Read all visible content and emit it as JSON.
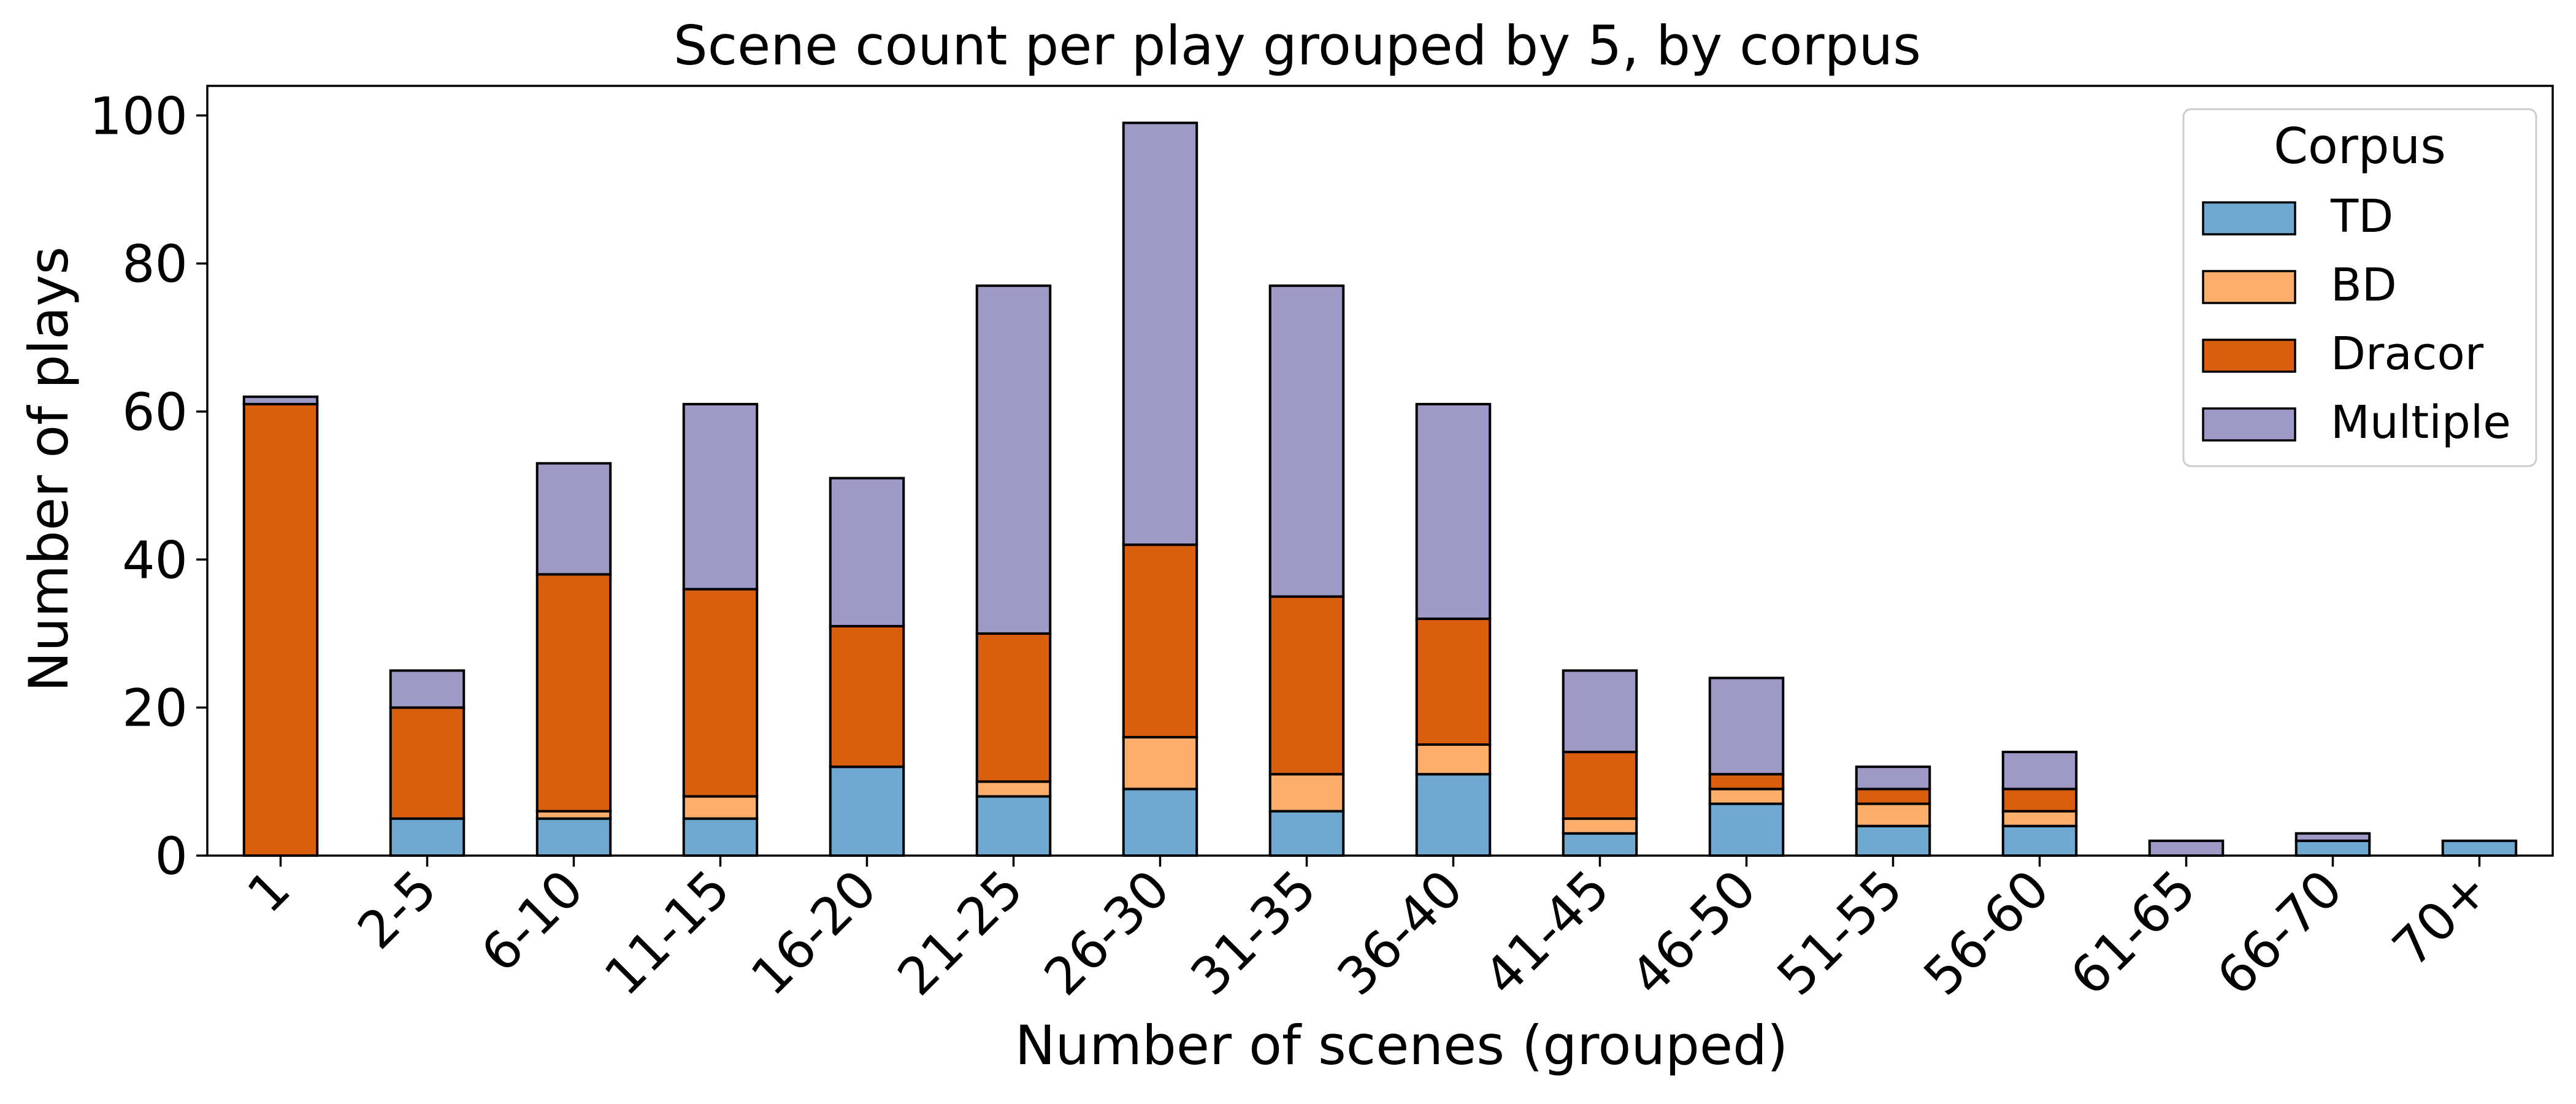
{
  "chart_data": {
    "type": "bar",
    "stacked": true,
    "title": "Scene count per play grouped by 5, by corpus",
    "xlabel": "Number of scenes (grouped)",
    "ylabel": "Number of plays",
    "ylim": [
      0,
      104
    ],
    "yticks": [
      0,
      20,
      40,
      60,
      80,
      100
    ],
    "grid": false,
    "categories": [
      "1",
      "2-5",
      "6-10",
      "11-15",
      "16-20",
      "21-25",
      "26-30",
      "31-35",
      "36-40",
      "41-45",
      "46-50",
      "51-55",
      "56-60",
      "61-65",
      "66-70",
      "70+"
    ],
    "series": [
      {
        "name": "TD",
        "color": "#6fa8d0",
        "values": [
          0,
          5,
          5,
          5,
          12,
          8,
          9,
          6,
          11,
          3,
          7,
          4,
          4,
          0,
          2,
          2
        ]
      },
      {
        "name": "BD",
        "color": "#fdae6b",
        "values": [
          0,
          0,
          1,
          3,
          0,
          2,
          7,
          5,
          4,
          2,
          2,
          3,
          2,
          0,
          0,
          0
        ]
      },
      {
        "name": "Dracor",
        "color": "#d95f0e",
        "values": [
          61,
          15,
          32,
          28,
          19,
          20,
          26,
          24,
          17,
          9,
          2,
          2,
          3,
          0,
          0,
          0
        ]
      },
      {
        "name": "Multiple",
        "color": "#9e9ac8",
        "values": [
          1,
          5,
          15,
          25,
          20,
          47,
          57,
          42,
          29,
          11,
          13,
          3,
          5,
          2,
          1,
          0
        ]
      }
    ],
    "legend": {
      "title": "Corpus",
      "position": "top-right"
    }
  }
}
